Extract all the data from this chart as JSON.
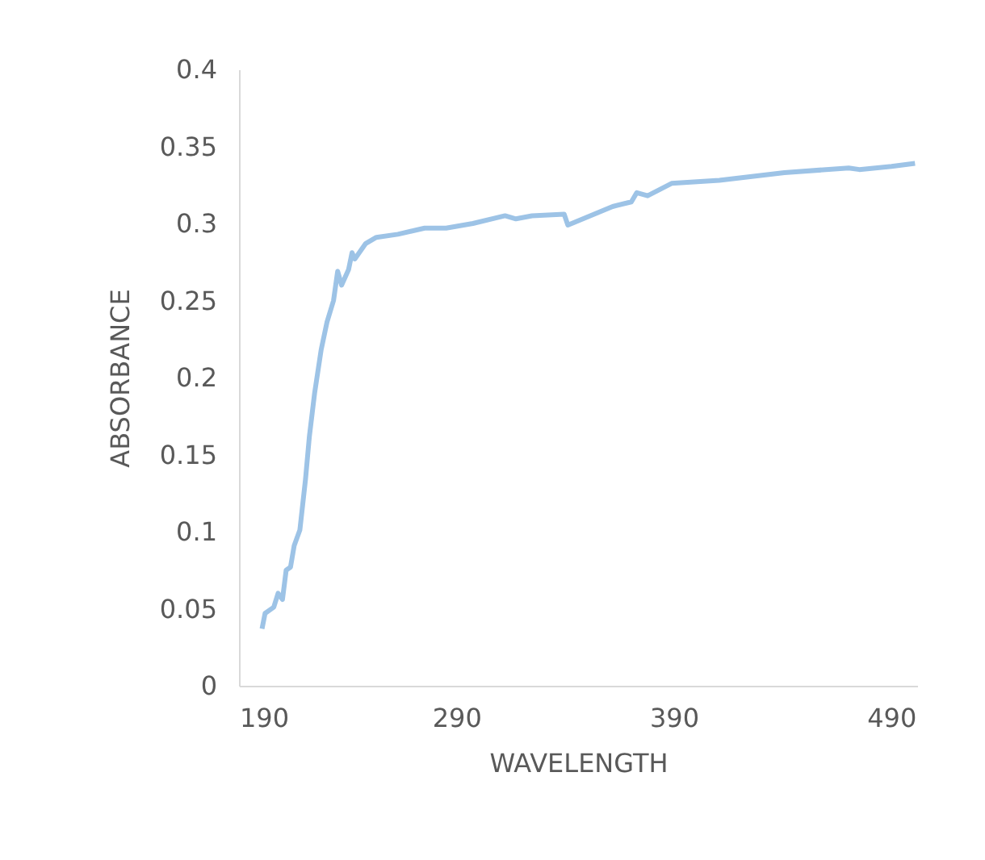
{
  "chart_data": {
    "type": "line",
    "xlabel": "WAVELENGTH",
    "ylabel": "ABSORBANCE",
    "x": [
      200.6,
      202,
      206,
      208,
      210,
      211.7,
      213.7,
      215.4,
      218,
      220.6,
      222.4,
      224.8,
      227.8,
      230.5,
      233.5,
      235.4,
      237.2,
      240.4,
      242,
      243.3,
      248.3,
      253.2,
      263.1,
      275.4,
      285.3,
      297.6,
      312.4,
      317.4,
      324.8,
      339.6,
      341.3,
      361.9,
      370.5,
      373,
      378,
      389,
      411,
      440.9,
      470.5,
      475.4,
      490.2,
      501
    ],
    "series": [
      {
        "color": "#9dc3e6",
        "values": [
          0.037,
          0.047,
          0.051,
          0.06,
          0.056,
          0.075,
          0.077,
          0.091,
          0.101,
          0.134,
          0.162,
          0.19,
          0.218,
          0.236,
          0.25,
          0.269,
          0.26,
          0.27,
          0.281,
          0.277,
          0.287,
          0.291,
          0.293,
          0.297,
          0.297,
          0.3,
          0.305,
          0.303,
          0.305,
          0.306,
          0.299,
          0.311,
          0.314,
          0.32,
          0.318,
          0.326,
          0.328,
          0.333,
          0.336,
          0.335,
          0.337,
          0.339
        ]
      }
    ],
    "xlim": [
      190,
      502
    ],
    "xticks": [
      190,
      290,
      390,
      490
    ],
    "ylim": [
      0,
      0.4
    ],
    "yticks": [
      0,
      0.05,
      0.1,
      0.15,
      0.2,
      0.25,
      0.3,
      0.35,
      0.4
    ],
    "grid": false,
    "legend": false,
    "marker": "none",
    "line_style": "solid"
  }
}
